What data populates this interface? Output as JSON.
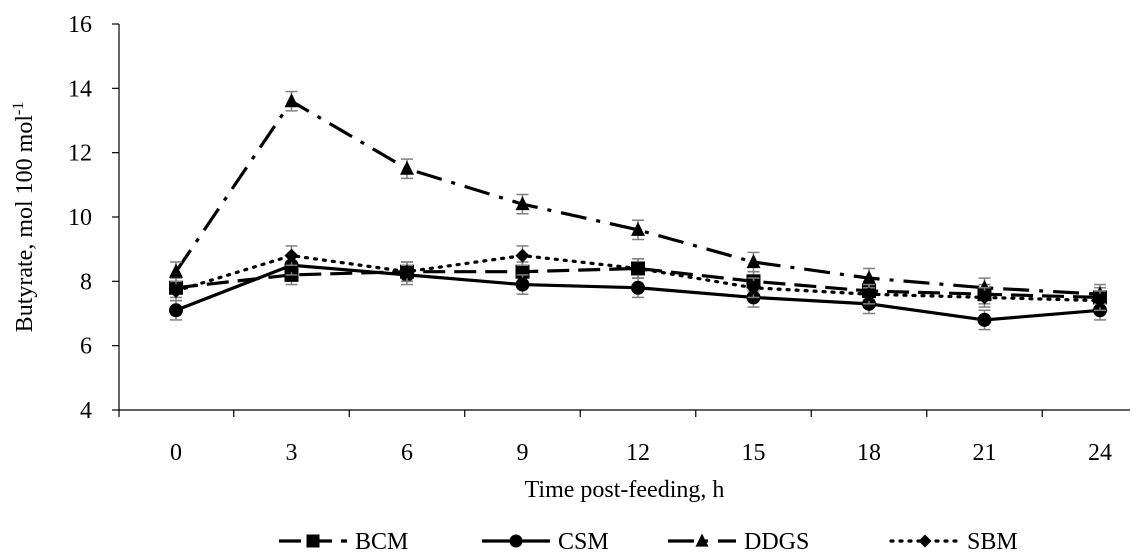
{
  "chart_data": {
    "type": "line",
    "title": "",
    "xlabel": "Time post-feeding, h",
    "ylabel": "Butyrate, mol 100 mol",
    "ylabel_superscript": "-1",
    "x": [
      0,
      3,
      6,
      9,
      12,
      15,
      18,
      21,
      24
    ],
    "x_tick_labels": [
      "0",
      "3",
      "6",
      "9",
      "12",
      "15",
      "18",
      "21",
      "24"
    ],
    "ylim": [
      4,
      16
    ],
    "y_ticks": [
      4,
      6,
      8,
      10,
      12,
      14,
      16
    ],
    "y_tick_labels": [
      "4",
      "6",
      "8",
      "10",
      "12",
      "14",
      "16"
    ],
    "grid": false,
    "legend_position": "bottom",
    "error_bars": true,
    "error_bar_half_width": 0.3,
    "error_bar_color": "#808080",
    "series": [
      {
        "name": "BCM",
        "marker": "square",
        "dash": "long-dash",
        "color": "#000000",
        "values": [
          7.8,
          8.2,
          8.3,
          8.3,
          8.4,
          8.0,
          7.7,
          7.6,
          7.5
        ]
      },
      {
        "name": "CSM",
        "marker": "circle",
        "dash": "solid",
        "color": "#000000",
        "values": [
          7.1,
          8.5,
          8.2,
          7.9,
          7.8,
          7.5,
          7.3,
          6.8,
          7.1
        ]
      },
      {
        "name": "DDGS",
        "marker": "triangle",
        "dash": "long-dash-dot",
        "color": "#000000",
        "values": [
          8.3,
          13.6,
          11.5,
          10.4,
          9.6,
          8.6,
          8.1,
          7.8,
          7.6
        ]
      },
      {
        "name": "SBM",
        "marker": "diamond",
        "dash": "round-dot",
        "color": "#000000",
        "values": [
          7.7,
          8.8,
          8.3,
          8.8,
          8.4,
          7.8,
          7.6,
          7.5,
          7.4
        ]
      }
    ]
  }
}
